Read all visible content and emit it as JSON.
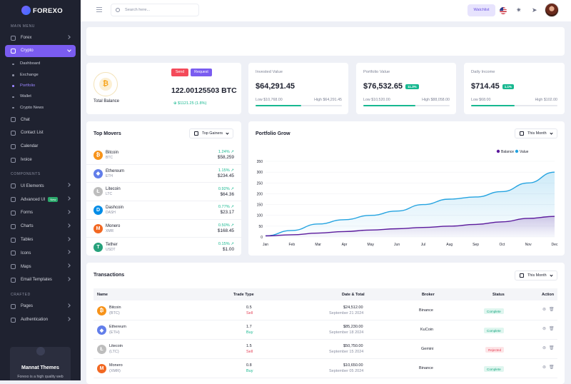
{
  "brand": {
    "name": "FOREXO"
  },
  "sidebar": {
    "sections": {
      "main": "MAIN MENU",
      "components": "COMPONENTS",
      "crafted": "CRAFTED"
    },
    "main_items": [
      {
        "label": "Forex",
        "icon": "grid-icon"
      },
      {
        "label": "Crypto",
        "icon": "bitcoin-icon",
        "active": true
      }
    ],
    "crypto_sub": [
      "Dashboard",
      "Exchange",
      "Portfolio",
      "Wallet",
      "Crypto News"
    ],
    "active_sub": "Portfolio",
    "more_items": [
      {
        "label": "Chat",
        "icon": "chat-icon"
      },
      {
        "label": "Contact List",
        "icon": "contacts-icon"
      },
      {
        "label": "Calendar",
        "icon": "calendar-icon"
      },
      {
        "label": "Ivoice",
        "icon": "invoice-icon"
      }
    ],
    "component_items": [
      {
        "label": "UI Elements",
        "icon": "layers-icon"
      },
      {
        "label": "Advanced UI",
        "icon": "box-icon",
        "badge": "New"
      },
      {
        "label": "Forms",
        "icon": "form-icon"
      },
      {
        "label": "Charts",
        "icon": "chart-icon"
      },
      {
        "label": "Tables",
        "icon": "table-icon"
      },
      {
        "label": "Icons",
        "icon": "star-icon"
      },
      {
        "label": "Maps",
        "icon": "map-icon"
      },
      {
        "label": "Email Templates",
        "icon": "mail-icon"
      }
    ],
    "crafted_items": [
      {
        "label": "Pages",
        "icon": "pages-icon"
      },
      {
        "label": "Authentication",
        "icon": "lock-icon"
      }
    ],
    "promo": {
      "title": "Mannat Themes",
      "desc": "Forexo is a high quality web"
    }
  },
  "topbar": {
    "search_placeholder": "Search here...",
    "watchlist": "Watchlist"
  },
  "balance": {
    "label": "Total Balance",
    "amount": "122.00125503 BTC",
    "change": "$1121.25 (1.8%)",
    "send": "Send",
    "request": "Request"
  },
  "stats": [
    {
      "label": "Invested Value",
      "value": "$64,291.45",
      "pill": "",
      "low": "Low $10,768.00",
      "high": "High $64,291.45",
      "progress": 0.53
    },
    {
      "label": "Portfolio Value",
      "value": "$76,532.65",
      "pill": "11.3%",
      "low": "Low $10,520.00",
      "high": "High $88,058.00",
      "progress": 0.6
    },
    {
      "label": "Daily Income",
      "value": "$714.45",
      "pill": "1.1%",
      "low": "Low $68.00",
      "high": "High $102.00",
      "progress": 0.5
    }
  ],
  "movers": {
    "title": "Top Movers",
    "dropdown": "Top Gainers",
    "items": [
      {
        "name": "Bitcoin",
        "sym": "BTC",
        "change": "1.24%",
        "price": "$58,259",
        "icon": "bitcoin-icon"
      },
      {
        "name": "Ethereum",
        "sym": "ETH",
        "change": "1.15%",
        "price": "$234.45",
        "icon": "ethereum-icon"
      },
      {
        "name": "Litecoin",
        "sym": "LTC",
        "change": "0.92%",
        "price": "$64.36",
        "icon": "litecoin-icon"
      },
      {
        "name": "Dashcoin",
        "sym": "DASH",
        "change": "0.77%",
        "price": "$23.17",
        "icon": "dash-icon"
      },
      {
        "name": "Monero",
        "sym": "XMR",
        "change": "0.50%",
        "price": "$168.45",
        "icon": "monero-icon"
      },
      {
        "name": "Tether",
        "sym": "USDT",
        "change": "0.15%",
        "price": "$1.00",
        "icon": "tether-icon"
      }
    ]
  },
  "portfolio": {
    "title": "Portfolio Grow",
    "dropdown": "This Month"
  },
  "chart_data": {
    "type": "area",
    "categories": [
      "Jan",
      "Feb",
      "Mar",
      "Apr",
      "May",
      "Jun",
      "Jul",
      "Aug",
      "Sep",
      "Oct",
      "Nov",
      "Dec"
    ],
    "ylim": [
      0,
      350
    ],
    "yticks": [
      0,
      50,
      100,
      150,
      200,
      250,
      300,
      350
    ],
    "legend_position": "top-right",
    "series": [
      {
        "name": "Balance",
        "color": "#5b1a9c",
        "values": [
          5,
          10,
          18,
          25,
          32,
          38,
          44,
          50,
          58,
          70,
          86,
          95
        ]
      },
      {
        "name": "Value",
        "color": "#24a3e0",
        "values": [
          5,
          30,
          60,
          80,
          100,
          120,
          150,
          175,
          185,
          210,
          250,
          300
        ]
      }
    ]
  },
  "transactions": {
    "title": "Transactions",
    "dropdown": "This Month",
    "headers": [
      "Name",
      "Trade Type",
      "Date & Total",
      "Broker",
      "Status",
      "Action"
    ],
    "rows": [
      {
        "name": "Bitcoin",
        "sym": "(BTC)",
        "qty": "0.5",
        "type": "Sell",
        "total": "$24,512.00",
        "date": "September 21 2024",
        "broker": "Binance",
        "status": "Complete",
        "icon": "bitcoin-icon"
      },
      {
        "name": "Ethereum",
        "sym": "(ETH)",
        "qty": "1.7",
        "type": "Buy",
        "total": "$85,230.00",
        "date": "September 18 2024",
        "broker": "KuCoin",
        "status": "Complete",
        "icon": "ethereum-icon"
      },
      {
        "name": "Litecoin",
        "sym": "(LTC)",
        "qty": "1.5",
        "type": "Sell",
        "total": "$50,750.00",
        "date": "September 15 2024",
        "broker": "Gemini",
        "status": "Rejected",
        "icon": "litecoin-icon"
      },
      {
        "name": "Monero",
        "sym": "(XMR)",
        "qty": "0.8",
        "type": "Buy",
        "total": "$10,650.00",
        "date": "September 05 2024",
        "broker": "Binance",
        "status": "Complete",
        "icon": "monero-icon"
      }
    ]
  }
}
